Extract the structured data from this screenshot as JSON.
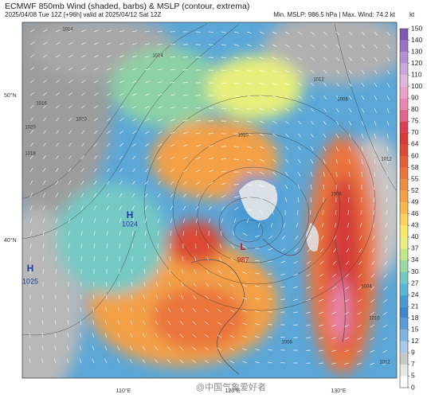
{
  "header": {
    "title": "ECMWF 850mb Wind (shaded, barbs) & MSLP (contour, extrema)",
    "subtitle": "2025/04/08 Tue 12Z [+96h] valid at 2025/04/12 Sat 12Z",
    "stats": "Min. MSLP: 986.5 hPa | Max. Wind: 74.2 kt"
  },
  "colorbar": {
    "unit": "kt",
    "levels": [
      0,
      5,
      7,
      9,
      12,
      15,
      18,
      21,
      24,
      27,
      30,
      34,
      37,
      40,
      43,
      46,
      49,
      52,
      55,
      58,
      60,
      64,
      70,
      75,
      80,
      90,
      100,
      110,
      120,
      130,
      140,
      150
    ],
    "colors": [
      "#ffffff",
      "#e6e6e6",
      "#c8c8c8",
      "#a9c9e8",
      "#7fb3e0",
      "#5a9bd8",
      "#3f86cc",
      "#4a9ad2",
      "#5bb5d5",
      "#74c9c4",
      "#9ad9a0",
      "#c3e68a",
      "#e6ef7c",
      "#f7ea6a",
      "#f8d25a",
      "#f6b84e",
      "#f3a047",
      "#ef8a42",
      "#ea743d",
      "#e35e39",
      "#dc4a36",
      "#d33a38",
      "#d93f52",
      "#e0678a",
      "#e888b0",
      "#e9a3c8",
      "#dcb8de",
      "#c9a8d8",
      "#b48fcf",
      "#9a73c2",
      "#8058b2"
    ]
  },
  "map": {
    "pressure_centers": [
      {
        "symbol": "H",
        "value": "1024"
      },
      {
        "symbol": "H",
        "value": "1025"
      },
      {
        "symbol": "L",
        "value": "987"
      }
    ],
    "lat_labels": [
      "50°N",
      "40°N"
    ],
    "lon_labels": [
      "110°E",
      "120°E",
      "130°E"
    ],
    "isobar_labels": [
      "1014",
      "1014",
      "1016",
      "1018",
      "1020",
      "1020",
      "1012",
      "1006",
      "1006",
      "1012",
      "1010",
      "1012",
      "1004",
      "1006",
      "1010"
    ]
  },
  "watermark": "@中国气象爱好者"
}
